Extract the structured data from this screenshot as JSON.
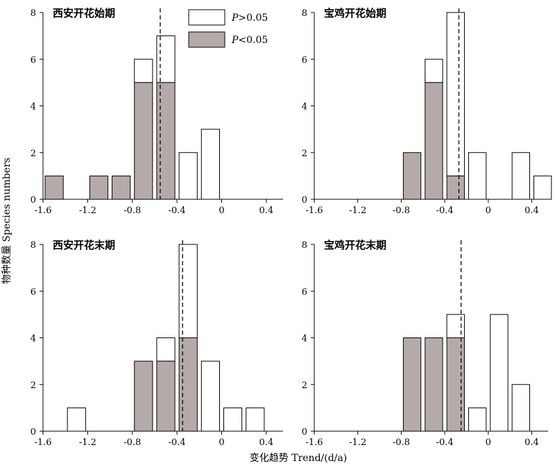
{
  "figure": {
    "ylabel": "物种数量 Species numbers",
    "xlabel": "变化趋势 Trend/(d/a)"
  },
  "legend": {
    "items": [
      {
        "label_italic": "P",
        "label_rest": ">0.05",
        "fill": "#ffffff"
      },
      {
        "label_italic": "P",
        "label_rest": "<0.05",
        "fill": "#b5aaaa"
      }
    ]
  },
  "colors": {
    "significant": "#b5aaaa",
    "nonsignificant": "#ffffff",
    "stroke": "#000000"
  },
  "chart_data": [
    {
      "type": "bar",
      "title": "西安开花始期",
      "bin_width": 0.2,
      "bins": [
        -1.5,
        -1.1,
        -0.9,
        -0.7,
        -0.5,
        -0.3,
        -0.1
      ],
      "total": [
        1,
        1,
        1,
        6,
        7,
        2,
        3
      ],
      "significant": [
        1,
        1,
        1,
        5,
        5,
        0,
        0
      ],
      "mean_trend": -0.55,
      "xlim": [
        -1.6,
        0.55
      ],
      "ylim": [
        0,
        8
      ],
      "xticks": [
        -1.6,
        -1.2,
        -0.8,
        -0.4,
        0,
        0.4
      ],
      "yticks": [
        0,
        2,
        4,
        6,
        8
      ]
    },
    {
      "type": "bar",
      "title": "宝鸡开花始期",
      "bin_width": 0.2,
      "bins": [
        -0.7,
        -0.5,
        -0.3,
        -0.1,
        0.3,
        0.5
      ],
      "total": [
        2,
        6,
        8,
        2,
        2,
        1
      ],
      "significant": [
        2,
        5,
        1,
        0,
        0,
        0
      ],
      "mean_trend": -0.27,
      "xlim": [
        -1.6,
        0.55
      ],
      "ylim": [
        0,
        8
      ],
      "xticks": [
        -1.6,
        -1.2,
        -0.8,
        -0.4,
        0,
        0.4
      ],
      "yticks": [
        0,
        2,
        4,
        6,
        8
      ]
    },
    {
      "type": "bar",
      "title": "西安开花末期",
      "bin_width": 0.2,
      "bins": [
        -1.3,
        -0.7,
        -0.5,
        -0.3,
        -0.1,
        0.1,
        0.3
      ],
      "total": [
        1,
        3,
        4,
        8,
        3,
        1,
        1
      ],
      "significant": [
        0,
        3,
        3,
        4,
        0,
        0,
        0
      ],
      "mean_trend": -0.35,
      "xlim": [
        -1.6,
        0.55
      ],
      "ylim": [
        0,
        8
      ],
      "xticks": [
        -1.6,
        -1.2,
        -0.8,
        -0.4,
        0,
        0.4
      ],
      "yticks": [
        0,
        2,
        4,
        6,
        8
      ]
    },
    {
      "type": "bar",
      "title": "宝鸡开花末期",
      "bin_width": 0.2,
      "bins": [
        -0.7,
        -0.5,
        -0.3,
        -0.1,
        0.1,
        0.3
      ],
      "total": [
        4,
        4,
        5,
        1,
        5,
        2
      ],
      "significant": [
        4,
        4,
        4,
        0,
        0,
        0
      ],
      "mean_trend": -0.25,
      "xlim": [
        -1.6,
        0.55
      ],
      "ylim": [
        0,
        8
      ],
      "xticks": [
        -1.6,
        -1.2,
        -0.8,
        -0.4,
        0,
        0.4
      ],
      "yticks": [
        0,
        2,
        4,
        6,
        8
      ]
    }
  ]
}
